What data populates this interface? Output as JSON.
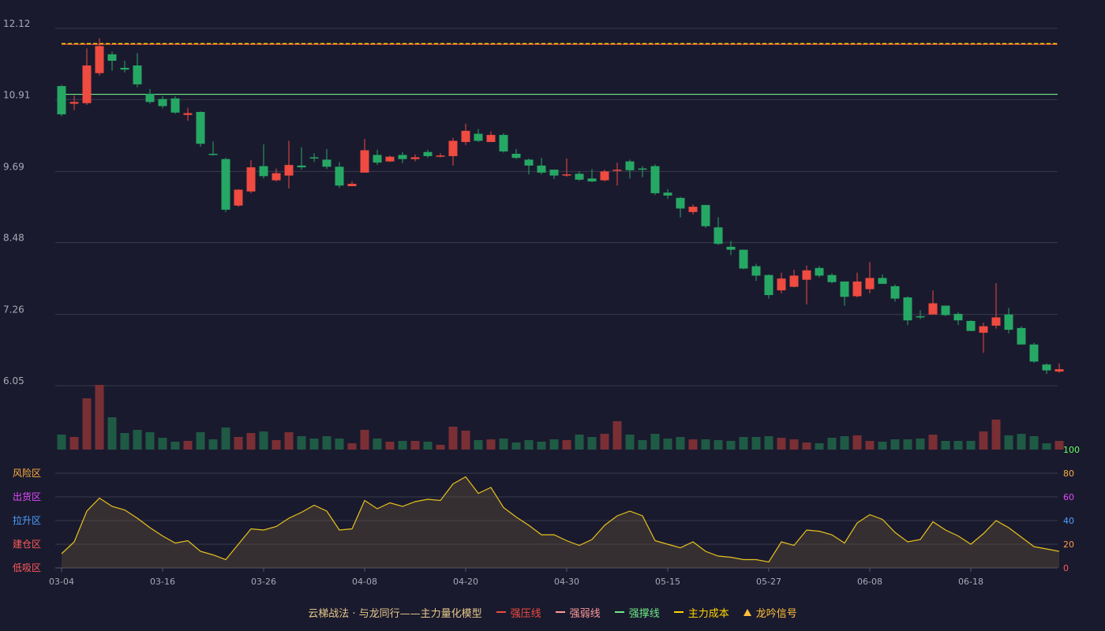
{
  "colors": {
    "background": "#1a1a2e",
    "up": "#ef4b40",
    "down": "#26a865",
    "grid": "#3a3a4c",
    "axis_text": "#a9a9b5",
    "pressure_line": "#ef4b40",
    "weak_line": "#ff9a9a",
    "support_line": "#6eea86",
    "cost_line": "#ffd400",
    "signal": "#ffc13a",
    "indicator_line": "#e7c21c"
  },
  "chart_data": [
    {
      "type": "candlestick",
      "y_ticks": [
        "12.12",
        "10.91",
        "9.69",
        "8.48",
        "7.26",
        "6.05"
      ],
      "ylim": [
        6.05,
        12.12
      ],
      "x_ticks": [
        {
          "index": 0,
          "label": "03-04"
        },
        {
          "index": 8,
          "label": "03-16"
        },
        {
          "index": 16,
          "label": "03-26"
        },
        {
          "index": 24,
          "label": "04-08"
        },
        {
          "index": 32,
          "label": "04-20"
        },
        {
          "index": 40,
          "label": "04-30"
        },
        {
          "index": 48,
          "label": "05-15"
        },
        {
          "index": 56,
          "label": "05-27"
        },
        {
          "index": 64,
          "label": "06-08"
        },
        {
          "index": 72,
          "label": "06-18"
        }
      ],
      "lines": {
        "strong_pressure": 11.85,
        "main_cost": 11.86,
        "strong_support": 11.0
      },
      "ohlc": [
        [
          11.14,
          10.66,
          11.16,
          10.63
        ],
        [
          10.84,
          10.87,
          10.98,
          10.73
        ],
        [
          10.85,
          11.49,
          11.78,
          10.82
        ],
        [
          11.36,
          11.82,
          11.95,
          11.32
        ],
        [
          11.68,
          11.57,
          11.73,
          11.4
        ],
        [
          11.45,
          11.42,
          11.57,
          11.37
        ],
        [
          11.49,
          11.17,
          11.7,
          11.12
        ],
        [
          11.01,
          10.87,
          11.09,
          10.84
        ],
        [
          10.92,
          10.8,
          10.97,
          10.76
        ],
        [
          10.93,
          10.69,
          10.97,
          10.67
        ],
        [
          10.65,
          10.68,
          10.77,
          10.55
        ],
        [
          10.7,
          10.16,
          10.71,
          10.11
        ],
        [
          9.99,
          9.97,
          10.2,
          9.96
        ],
        [
          9.9,
          9.04,
          9.92,
          9.0
        ],
        [
          9.11,
          9.38,
          9.39,
          9.09
        ],
        [
          9.35,
          9.76,
          9.88,
          9.32
        ],
        [
          9.78,
          9.61,
          10.15,
          9.57
        ],
        [
          9.54,
          9.66,
          9.74,
          9.52
        ],
        [
          9.62,
          9.8,
          10.21,
          9.4
        ],
        [
          9.79,
          9.76,
          10.1,
          9.72
        ],
        [
          9.93,
          9.92,
          10.0,
          9.85
        ],
        [
          9.89,
          9.77,
          10.07,
          9.73
        ],
        [
          9.77,
          9.45,
          9.85,
          9.41
        ],
        [
          9.44,
          9.48,
          9.52,
          9.44
        ],
        [
          9.67,
          10.05,
          10.24,
          9.71
        ],
        [
          9.97,
          9.84,
          10.06,
          9.8
        ],
        [
          9.86,
          9.94,
          9.96,
          9.85
        ],
        [
          9.97,
          9.9,
          10.02,
          9.83
        ],
        [
          9.9,
          9.93,
          9.98,
          9.86
        ],
        [
          10.02,
          9.95,
          10.06,
          9.92
        ],
        [
          9.94,
          9.96,
          10.0,
          9.93
        ],
        [
          9.95,
          10.21,
          10.26,
          9.79
        ],
        [
          10.19,
          10.38,
          10.5,
          10.14
        ],
        [
          10.33,
          10.21,
          10.41,
          10.19
        ],
        [
          10.19,
          10.31,
          10.37,
          10.19
        ],
        [
          10.31,
          10.03,
          10.34,
          10.01
        ],
        [
          9.99,
          9.92,
          10.07,
          9.9
        ],
        [
          9.89,
          9.79,
          9.91,
          9.64
        ],
        [
          9.79,
          9.67,
          9.92,
          9.64
        ],
        [
          9.72,
          9.62,
          9.72,
          9.56
        ],
        [
          9.63,
          9.64,
          9.91,
          9.6
        ],
        [
          9.65,
          9.55,
          9.69,
          9.53
        ],
        [
          9.57,
          9.52,
          9.73,
          9.51
        ],
        [
          9.54,
          9.69,
          9.72,
          9.52
        ],
        [
          9.71,
          9.72,
          9.84,
          9.45
        ],
        [
          9.86,
          9.71,
          9.89,
          9.57
        ],
        [
          9.74,
          9.72,
          9.78,
          9.59
        ],
        [
          9.78,
          9.32,
          9.81,
          9.29
        ],
        [
          9.33,
          9.28,
          9.39,
          9.22
        ],
        [
          9.24,
          9.06,
          9.26,
          8.91
        ],
        [
          9.0,
          9.09,
          9.13,
          8.96
        ],
        [
          9.12,
          8.76,
          9.12,
          8.73
        ],
        [
          8.74,
          8.46,
          8.91,
          8.44
        ],
        [
          8.41,
          8.36,
          8.51,
          8.27
        ],
        [
          8.36,
          8.04,
          8.36,
          8.03
        ],
        [
          8.08,
          7.92,
          8.12,
          7.83
        ],
        [
          7.93,
          7.59,
          7.94,
          7.53
        ],
        [
          7.67,
          7.87,
          7.97,
          7.62
        ],
        [
          7.73,
          7.92,
          8.02,
          7.72
        ],
        [
          7.85,
          8.01,
          8.09,
          7.43
        ],
        [
          8.05,
          7.92,
          8.08,
          7.89
        ],
        [
          7.93,
          7.81,
          7.96,
          7.79
        ],
        [
          7.82,
          7.56,
          7.82,
          7.41
        ],
        [
          7.57,
          7.82,
          7.97,
          7.55
        ],
        [
          7.69,
          7.88,
          8.15,
          7.62
        ],
        [
          7.88,
          7.78,
          7.94,
          7.79
        ],
        [
          7.74,
          7.53,
          7.77,
          7.48
        ],
        [
          7.55,
          7.16,
          7.57,
          7.08
        ],
        [
          7.23,
          7.22,
          7.33,
          7.18
        ],
        [
          7.26,
          7.45,
          7.67,
          7.27
        ],
        [
          7.41,
          7.25,
          7.41,
          7.23
        ],
        [
          7.27,
          7.16,
          7.3,
          7.08
        ],
        [
          7.15,
          6.98,
          7.16,
          6.98
        ],
        [
          6.95,
          7.06,
          7.12,
          6.61
        ],
        [
          7.07,
          7.21,
          7.79,
          7.02
        ],
        [
          7.26,
          7.0,
          7.37,
          6.94
        ],
        [
          7.03,
          6.75,
          7.06,
          6.75
        ],
        [
          6.75,
          6.46,
          6.78,
          6.44
        ],
        [
          6.41,
          6.31,
          6.43,
          6.25
        ],
        [
          6.29,
          6.33,
          6.43,
          6.27
        ]
      ]
    },
    {
      "type": "bar",
      "name": "volume",
      "values": [
        19,
        16,
        65,
        82,
        41,
        21,
        25,
        22,
        15,
        10,
        11,
        22,
        13,
        28,
        16,
        21,
        23,
        12,
        22,
        17,
        14,
        17,
        14,
        8,
        25,
        14,
        10,
        11,
        11,
        10,
        6,
        29,
        24,
        12,
        13,
        14,
        9,
        12,
        10,
        13,
        12,
        19,
        16,
        20,
        36,
        19,
        12,
        20,
        14,
        16,
        13,
        13,
        12,
        11,
        16,
        16,
        17,
        15,
        13,
        9,
        8,
        15,
        17,
        18,
        11,
        10,
        13,
        13,
        14,
        19,
        11,
        11,
        11,
        23,
        38,
        18,
        20,
        17,
        8,
        11
      ]
    },
    {
      "type": "area",
      "y_ticks": [
        {
          "value": 0,
          "color": "#ff5a5a"
        },
        {
          "value": 20,
          "color": "#ff9a4a"
        },
        {
          "value": 40,
          "color": "#4aa3ff"
        },
        {
          "value": 60,
          "color": "#e04aff"
        },
        {
          "value": 80,
          "color": "#ffb040"
        },
        {
          "value": 100,
          "color": "#66ff66"
        }
      ],
      "ylim": [
        0,
        100
      ],
      "zones": [
        {
          "label": "风险区",
          "value": 80,
          "color": "#ffb040"
        },
        {
          "label": "出货区",
          "value": 60,
          "color": "#e04aff"
        },
        {
          "label": "拉升区",
          "value": 40,
          "color": "#4aa3ff"
        },
        {
          "label": "建仓区",
          "value": 20,
          "color": "#ff5a5a"
        },
        {
          "label": "低吸区",
          "value": 0,
          "color": "#ff5a5a"
        }
      ],
      "values": [
        12,
        22,
        48,
        59,
        52,
        49,
        42,
        34,
        27,
        21,
        23,
        14,
        11,
        7,
        20,
        33,
        32,
        35,
        42,
        47,
        53,
        48,
        32,
        33,
        57,
        50,
        55,
        52,
        56,
        58,
        57,
        71,
        77,
        63,
        68,
        51,
        43,
        36,
        28,
        28,
        23,
        19,
        24,
        36,
        44,
        48,
        44,
        23,
        20,
        17,
        22,
        14,
        10,
        9,
        7,
        7,
        5,
        22,
        19,
        32,
        31,
        28,
        21,
        38,
        45,
        41,
        30,
        22,
        24,
        39,
        32,
        27,
        20,
        29,
        40,
        34,
        26,
        18,
        16,
        14
      ]
    }
  ],
  "legend": [
    {
      "label": "云梯战法 · 与龙同行——主力量化模型",
      "kind": "none",
      "color": "#e6c88a"
    },
    {
      "label": "强压线",
      "kind": "solid",
      "color": "#ef4b40"
    },
    {
      "label": "强弱线",
      "kind": "dashed",
      "color": "#ff9a9a"
    },
    {
      "label": "强撑线",
      "kind": "solid",
      "color": "#6eea86"
    },
    {
      "label": "主力成本",
      "kind": "dashed",
      "color": "#ffd400"
    },
    {
      "label": "龙吟信号",
      "kind": "triangle",
      "color": "#ffc13a"
    }
  ]
}
